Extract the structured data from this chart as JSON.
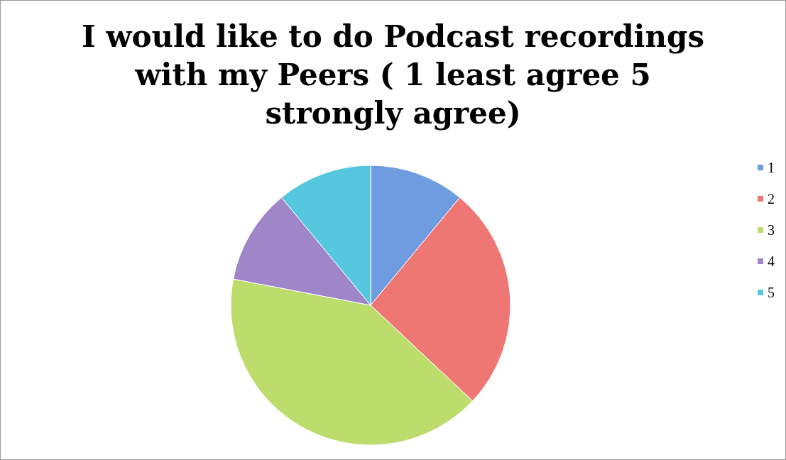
{
  "chart_data": {
    "type": "pie",
    "title": "I would like to do Podcast recordings with my Peers ( 1 least agree 5 strongly agree)",
    "categories": [
      "1",
      "2",
      "3",
      "4",
      "5"
    ],
    "values": [
      11,
      26,
      41,
      11,
      11
    ],
    "colors": [
      "#6f9be0",
      "#ee7774",
      "#bcdc6c",
      "#9f86c8",
      "#55c8df"
    ],
    "legend": "right"
  }
}
